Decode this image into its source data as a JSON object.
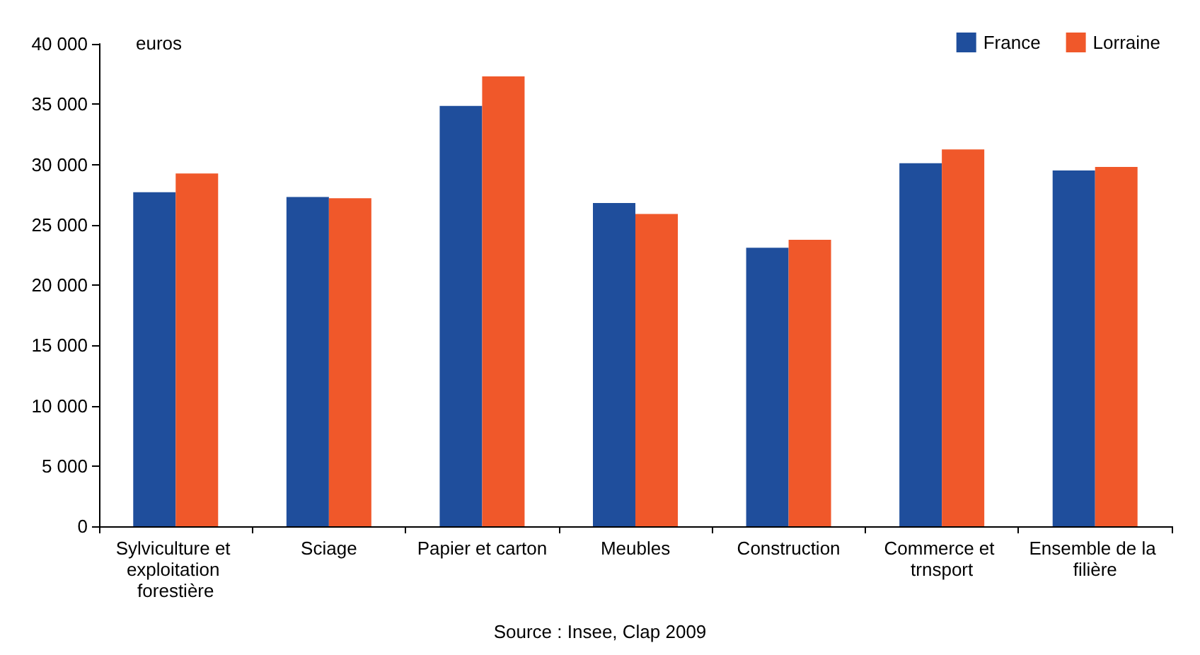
{
  "chart_data": {
    "type": "bar",
    "ylabel": "euros",
    "categories": [
      "Sylviculture et exploitation forestière",
      "Sciage",
      "Papier et carton",
      "Meubles",
      "Construction",
      "Commerce et trnsport",
      "Ensemble de la filière"
    ],
    "series": [
      {
        "name": "France",
        "color": "#1f4e9c",
        "values": [
          27700,
          27300,
          34850,
          26800,
          23100,
          30100,
          29500
        ]
      },
      {
        "name": "Lorraine",
        "color": "#f0582a",
        "values": [
          29250,
          27200,
          37300,
          25900,
          23750,
          31250,
          29800
        ]
      }
    ],
    "ylim": [
      0,
      40000
    ],
    "yticks": [
      0,
      {
        "value": 5000,
        "label": "5 000"
      },
      {
        "value": 10000,
        "label": "10 000"
      },
      {
        "value": 15000,
        "label": "15 000"
      },
      {
        "value": 20000,
        "label": "20 000"
      },
      {
        "value": 25000,
        "label": "25 000"
      },
      {
        "value": 30000,
        "label": "30 000"
      },
      {
        "value": 35000,
        "label": "35 000"
      },
      {
        "value": 40000,
        "label": "40 000"
      }
    ],
    "grid": false,
    "legend": "top right",
    "annotations": [
      "Source : Insee, Clap 2009"
    ]
  }
}
